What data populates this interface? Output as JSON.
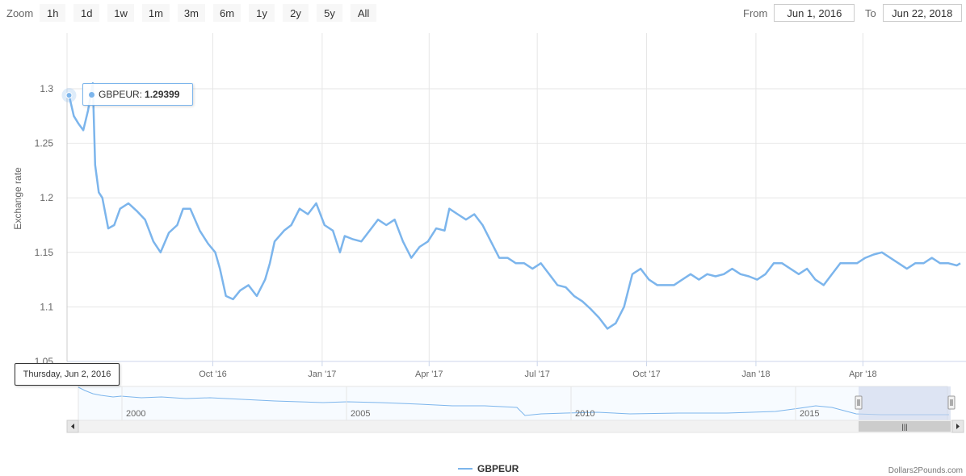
{
  "toolbar": {
    "zoom_label": "Zoom",
    "zoom_buttons": [
      "1h",
      "1d",
      "1w",
      "1m",
      "3m",
      "6m",
      "1y",
      "2y",
      "5y",
      "All"
    ],
    "from_label": "From",
    "from_value": "Jun 1, 2016",
    "to_label": "To",
    "to_value": "Jun 22, 2018"
  },
  "tooltip": {
    "series_label": "GBPEUR:",
    "value": "1.29399",
    "date": "Thursday, Jun 2, 2016"
  },
  "legend": {
    "label": "GBPEUR"
  },
  "credits": "Dollars2Pounds.com",
  "colors": {
    "series": "#7cb5ec",
    "grid": "#e6e6e6",
    "navigator_mask": "#ccd6eb"
  },
  "chart_data": {
    "type": "line",
    "title": "",
    "xlabel": "",
    "ylabel": "Exchange rate",
    "ylim": [
      1.05,
      1.3
    ],
    "y_ticks": [
      "1.05",
      "1.1",
      "1.15",
      "1.2",
      "1.25",
      "1.3"
    ],
    "xlim": [
      "2016-06-01",
      "2018-06-22"
    ],
    "x_ticks": [
      {
        "label": "Oct '16",
        "date": "2016-10-01"
      },
      {
        "label": "Jan '17",
        "date": "2017-01-01"
      },
      {
        "label": "Apr '17",
        "date": "2017-04-01"
      },
      {
        "label": "Jul '17",
        "date": "2017-07-01"
      },
      {
        "label": "Oct '17",
        "date": "2017-10-01"
      },
      {
        "label": "Jan '18",
        "date": "2018-01-01"
      },
      {
        "label": "Apr '18",
        "date": "2018-04-01"
      }
    ],
    "grid": true,
    "legend_position": "bottom-center",
    "series": [
      {
        "name": "GBPEUR",
        "points": [
          [
            "2016-06-02",
            1.294
          ],
          [
            "2016-06-06",
            1.275
          ],
          [
            "2016-06-10",
            1.268
          ],
          [
            "2016-06-14",
            1.262
          ],
          [
            "2016-06-18",
            1.28
          ],
          [
            "2016-06-22",
            1.305
          ],
          [
            "2016-06-24",
            1.23
          ],
          [
            "2016-06-27",
            1.205
          ],
          [
            "2016-06-30",
            1.2
          ],
          [
            "2016-07-05",
            1.172
          ],
          [
            "2016-07-10",
            1.175
          ],
          [
            "2016-07-15",
            1.19
          ],
          [
            "2016-07-22",
            1.195
          ],
          [
            "2016-07-29",
            1.188
          ],
          [
            "2016-08-05",
            1.18
          ],
          [
            "2016-08-12",
            1.16
          ],
          [
            "2016-08-18",
            1.15
          ],
          [
            "2016-08-25",
            1.168
          ],
          [
            "2016-09-01",
            1.175
          ],
          [
            "2016-09-06",
            1.19
          ],
          [
            "2016-09-12",
            1.19
          ],
          [
            "2016-09-20",
            1.17
          ],
          [
            "2016-09-27",
            1.158
          ],
          [
            "2016-10-03",
            1.15
          ],
          [
            "2016-10-07",
            1.135
          ],
          [
            "2016-10-12",
            1.11
          ],
          [
            "2016-10-18",
            1.107
          ],
          [
            "2016-10-24",
            1.115
          ],
          [
            "2016-10-31",
            1.12
          ],
          [
            "2016-11-07",
            1.11
          ],
          [
            "2016-11-14",
            1.125
          ],
          [
            "2016-11-18",
            1.14
          ],
          [
            "2016-11-22",
            1.16
          ],
          [
            "2016-11-30",
            1.17
          ],
          [
            "2016-12-06",
            1.175
          ],
          [
            "2016-12-13",
            1.19
          ],
          [
            "2016-12-20",
            1.185
          ],
          [
            "2016-12-27",
            1.195
          ],
          [
            "2017-01-03",
            1.175
          ],
          [
            "2017-01-10",
            1.17
          ],
          [
            "2017-01-16",
            1.15
          ],
          [
            "2017-01-20",
            1.165
          ],
          [
            "2017-01-27",
            1.162
          ],
          [
            "2017-02-03",
            1.16
          ],
          [
            "2017-02-10",
            1.17
          ],
          [
            "2017-02-17",
            1.18
          ],
          [
            "2017-02-24",
            1.175
          ],
          [
            "2017-03-03",
            1.18
          ],
          [
            "2017-03-10",
            1.16
          ],
          [
            "2017-03-17",
            1.145
          ],
          [
            "2017-03-24",
            1.155
          ],
          [
            "2017-03-31",
            1.16
          ],
          [
            "2017-04-07",
            1.172
          ],
          [
            "2017-04-14",
            1.17
          ],
          [
            "2017-04-18",
            1.19
          ],
          [
            "2017-04-25",
            1.185
          ],
          [
            "2017-05-02",
            1.18
          ],
          [
            "2017-05-09",
            1.185
          ],
          [
            "2017-05-16",
            1.175
          ],
          [
            "2017-05-23",
            1.16
          ],
          [
            "2017-05-30",
            1.145
          ],
          [
            "2017-06-06",
            1.145
          ],
          [
            "2017-06-13",
            1.14
          ],
          [
            "2017-06-20",
            1.14
          ],
          [
            "2017-06-27",
            1.135
          ],
          [
            "2017-07-04",
            1.14
          ],
          [
            "2017-07-11",
            1.13
          ],
          [
            "2017-07-18",
            1.12
          ],
          [
            "2017-07-25",
            1.118
          ],
          [
            "2017-08-01",
            1.11
          ],
          [
            "2017-08-08",
            1.105
          ],
          [
            "2017-08-15",
            1.098
          ],
          [
            "2017-08-22",
            1.09
          ],
          [
            "2017-08-29",
            1.08
          ],
          [
            "2017-09-05",
            1.085
          ],
          [
            "2017-09-12",
            1.1
          ],
          [
            "2017-09-19",
            1.13
          ],
          [
            "2017-09-26",
            1.135
          ],
          [
            "2017-10-03",
            1.125
          ],
          [
            "2017-10-10",
            1.12
          ],
          [
            "2017-10-17",
            1.12
          ],
          [
            "2017-10-24",
            1.12
          ],
          [
            "2017-10-31",
            1.125
          ],
          [
            "2017-11-07",
            1.13
          ],
          [
            "2017-11-14",
            1.125
          ],
          [
            "2017-11-21",
            1.13
          ],
          [
            "2017-11-28",
            1.128
          ],
          [
            "2017-12-05",
            1.13
          ],
          [
            "2017-12-12",
            1.135
          ],
          [
            "2017-12-19",
            1.13
          ],
          [
            "2017-12-26",
            1.128
          ],
          [
            "2018-01-02",
            1.125
          ],
          [
            "2018-01-09",
            1.13
          ],
          [
            "2018-01-16",
            1.14
          ],
          [
            "2018-01-23",
            1.14
          ],
          [
            "2018-01-30",
            1.135
          ],
          [
            "2018-02-06",
            1.13
          ],
          [
            "2018-02-13",
            1.135
          ],
          [
            "2018-02-20",
            1.125
          ],
          [
            "2018-02-27",
            1.12
          ],
          [
            "2018-03-06",
            1.13
          ],
          [
            "2018-03-13",
            1.14
          ],
          [
            "2018-03-20",
            1.14
          ],
          [
            "2018-03-27",
            1.14
          ],
          [
            "2018-04-03",
            1.145
          ],
          [
            "2018-04-10",
            1.148
          ],
          [
            "2018-04-17",
            1.15
          ],
          [
            "2018-04-24",
            1.145
          ],
          [
            "2018-05-01",
            1.14
          ],
          [
            "2018-05-08",
            1.135
          ],
          [
            "2018-05-15",
            1.14
          ],
          [
            "2018-05-22",
            1.14
          ],
          [
            "2018-05-29",
            1.145
          ],
          [
            "2018-06-05",
            1.14
          ],
          [
            "2018-06-12",
            1.14
          ],
          [
            "2018-06-19",
            1.138
          ],
          [
            "2018-06-22",
            1.14
          ]
        ]
      }
    ]
  },
  "navigator": {
    "year_labels": [
      "2000",
      "2005",
      "2010",
      "2015"
    ],
    "selected_range": [
      "2016-06-01",
      "2018-06-22"
    ],
    "scroll_grip": "|||"
  }
}
